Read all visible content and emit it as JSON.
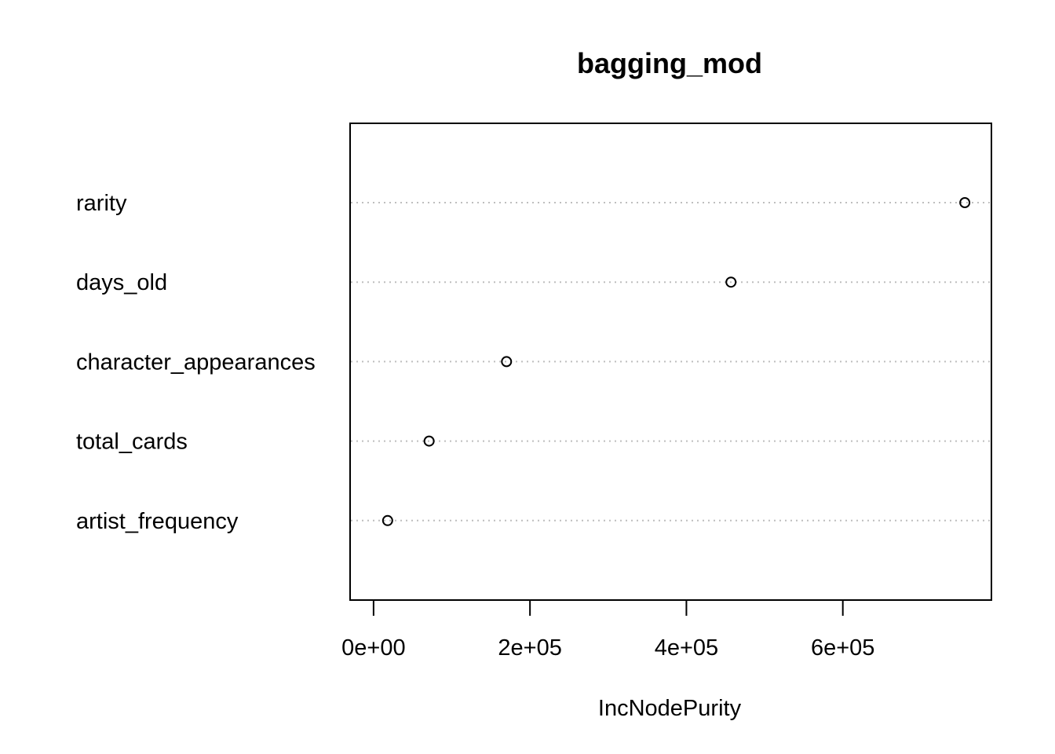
{
  "chart_data": {
    "type": "scatter",
    "subtype": "dotchart",
    "title": "bagging_mod",
    "xlabel": "IncNodePurity",
    "ylabel": "",
    "categories": [
      "rarity",
      "days_old",
      "character_appearances",
      "total_cards",
      "artist_frequency"
    ],
    "values": [
      756000,
      457000,
      170000,
      71000,
      18000
    ],
    "xlim": [
      -30000,
      790000
    ],
    "x_ticks": [
      0,
      200000,
      400000,
      600000
    ],
    "x_tick_labels": [
      "0e+00",
      "2e+05",
      "4e+05",
      "6e+05"
    ],
    "grid": "dotted horizontal guide lines per variable",
    "legend": "none"
  },
  "colors": {
    "point_stroke": "#000000",
    "guide_line": "#bebebe",
    "frame": "#000000",
    "background": "#ffffff"
  }
}
